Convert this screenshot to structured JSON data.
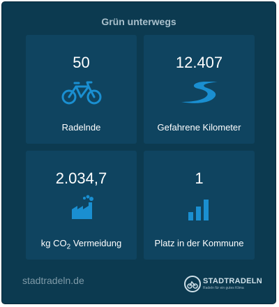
{
  "widget": {
    "title": "Grün unterwegs",
    "accent_color": "#1a8fd1",
    "stats": [
      {
        "value": "50",
        "label": "Radelnde",
        "icon": "bicycle-icon"
      },
      {
        "value": "12.407",
        "label": "Gefahrene Kilometer",
        "icon": "road-icon"
      },
      {
        "value": "2.034,7",
        "label_prefix": "kg CO",
        "label_sub": "2",
        "label_suffix": " Vermeidung",
        "icon": "factory-icon"
      },
      {
        "value": "1",
        "label": "Platz in der Kommune",
        "icon": "bar-chart-icon"
      }
    ],
    "footer": {
      "link_text": "stadtradeln.de",
      "brand_name": "STADTRADELN",
      "brand_claim": "Radeln für ein gutes Klima"
    }
  }
}
